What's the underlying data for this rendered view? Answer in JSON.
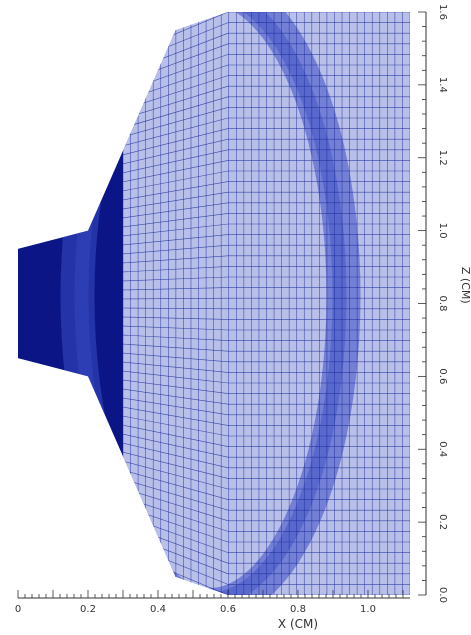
{
  "chart_data": {
    "type": "mesh",
    "xlabel": "X (CM)",
    "ylabel": "Z (CM)",
    "xlim": [
      0,
      1.12
    ],
    "ylim": [
      0,
      1.6
    ],
    "x_ticks": [
      {
        "value": 0.0,
        "label": "0"
      },
      {
        "value": 0.2,
        "label": "0.2"
      },
      {
        "value": 0.4,
        "label": "0.4"
      },
      {
        "value": 0.6,
        "label": "0.6"
      },
      {
        "value": 0.8,
        "label": "0.8"
      },
      {
        "value": 1.0,
        "label": "1.0"
      }
    ],
    "y_ticks": [
      {
        "value": 0.0,
        "label": "0.0"
      },
      {
        "value": 0.2,
        "label": "0.2"
      },
      {
        "value": 0.4,
        "label": "0.4"
      },
      {
        "value": 0.6,
        "label": "0.6"
      },
      {
        "value": 0.8,
        "label": "0.8"
      },
      {
        "value": 1.0,
        "label": "1.0"
      },
      {
        "value": 1.2,
        "label": "1.2"
      },
      {
        "value": 1.4,
        "label": "1.4"
      },
      {
        "value": 1.6,
        "label": "1.6"
      }
    ],
    "domain_outline": [
      [
        0.0,
        0.65
      ],
      [
        0.2,
        0.6
      ],
      [
        0.45,
        0.05
      ],
      [
        0.6,
        0.0
      ],
      [
        1.12,
        0.0
      ],
      [
        1.12,
        1.6
      ],
      [
        0.6,
        1.6
      ],
      [
        0.45,
        1.55
      ],
      [
        0.2,
        1.0
      ],
      [
        0.0,
        0.95
      ]
    ],
    "mesh_x_range": [
      0.3,
      1.12
    ],
    "mesh_x_divisions": 38,
    "mesh_z_divisions": 55,
    "colors": {
      "solid_region": "#0b1585",
      "mesh_background": "#b8bfe8",
      "mesh_lines": "#1a2a9a",
      "shock_band": "#3a4cc4"
    }
  }
}
